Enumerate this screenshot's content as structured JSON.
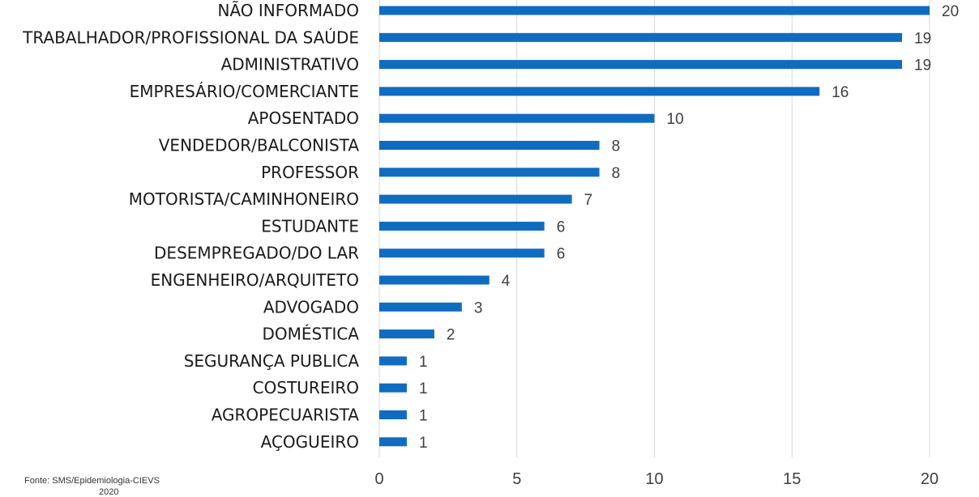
{
  "chart_data": {
    "type": "bar",
    "orientation": "horizontal",
    "categories": [
      "NÃO INFORMADO",
      "TRABALHADOR/PROFISSIONAL DA SAÚDE",
      "ADMINISTRATIVO",
      "EMPRESÁRIO/COMERCIANTE",
      "APOSENTADO",
      "VENDEDOR/BALCONISTA",
      "PROFESSOR",
      "MOTORISTA/CAMINHONEIRO",
      "ESTUDANTE",
      "DESEMPREGADO/DO LAR",
      "ENGENHEIRO/ARQUITETO",
      "ADVOGADO",
      "DOMÉSTICA",
      "SEGURANÇA PUBLICA",
      "COSTUREIRO",
      "AGROPECUARISTA",
      "AÇOGUEIRO"
    ],
    "values": [
      20,
      19,
      19,
      16,
      10,
      8,
      8,
      7,
      6,
      6,
      4,
      3,
      2,
      1,
      1,
      1,
      1
    ],
    "value_labels": [
      "20",
      "19",
      "19",
      "16",
      "10",
      "8",
      "8",
      "7",
      "6",
      "6",
      "4",
      "3",
      "2",
      "1",
      "1",
      "1",
      "1"
    ],
    "xlim": [
      0,
      20
    ],
    "x_ticks": [
      "0",
      "5",
      "10",
      "15",
      "20"
    ],
    "grid": "vertical",
    "bar_color": "#0f6cc0",
    "gridline_color": "#d9d9d9"
  },
  "source": {
    "text": "Fonte: SMS/Epidemiologia-CIEVS",
    "year": "2020"
  }
}
